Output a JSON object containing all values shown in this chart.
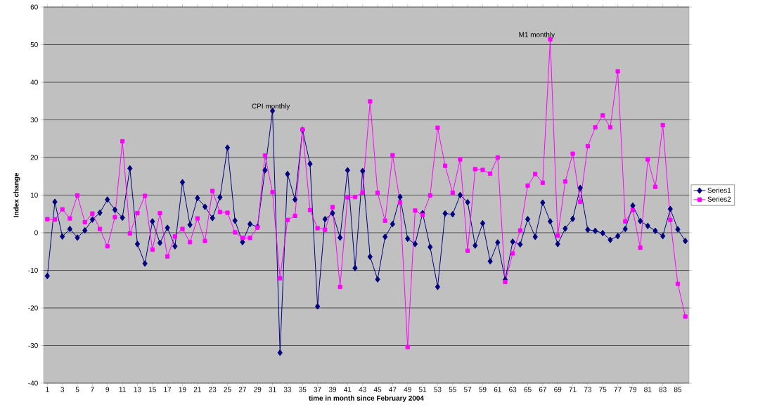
{
  "chart_data": {
    "type": "line",
    "xlabel": "time in month since February 2004",
    "ylabel": "Index change",
    "categories": [
      "1",
      null,
      "3",
      null,
      "5",
      null,
      "7",
      null,
      "9",
      null,
      "11",
      null,
      "13",
      null,
      "15",
      null,
      "17",
      null,
      "19",
      null,
      "21",
      null,
      "23",
      null,
      "25",
      null,
      "27",
      null,
      "29",
      null,
      "31",
      null,
      "33",
      null,
      "35",
      null,
      "37",
      null,
      "39",
      null,
      "41",
      null,
      "43",
      null,
      "45",
      null,
      "47",
      null,
      "49",
      null,
      "51",
      null,
      "53",
      null,
      "55",
      null,
      "57",
      null,
      "59",
      null,
      "61",
      null,
      "63",
      null,
      "65",
      null,
      "67",
      null,
      "69",
      null,
      "71",
      null,
      "73",
      null,
      "75",
      null,
      "77",
      null,
      "79",
      null,
      "81",
      null,
      "83",
      null,
      "85",
      null
    ],
    "series": [
      {
        "name": "Series1",
        "color": "#000080",
        "marker": "diamond",
        "values": [
          -11.5,
          8.2,
          -1,
          1,
          -1.3,
          0.6,
          3.5,
          5.3,
          8.8,
          6.1,
          4,
          17.1,
          -3,
          -8.2,
          3,
          -2.7,
          1.3,
          -3.6,
          13.4,
          2.1,
          9.2,
          6.9,
          3.9,
          9.4,
          22.6,
          3.2,
          -2.5,
          2.3,
          1.6,
          16.6,
          32.4,
          -31.9,
          15.6,
          8.8,
          27.3,
          18.3,
          -19.6,
          3.6,
          5.2,
          -1.3,
          16.6,
          -9.4,
          16.4,
          -6.4,
          -12.4,
          -1.1,
          2.3,
          9.5,
          -1.6,
          -3,
          5.2,
          -3.8,
          -14.4,
          5.1,
          4.9,
          10,
          8.1,
          -3.4,
          2.5,
          -7.6,
          -2.6,
          -12.5,
          -2.4,
          -3.1,
          3.6,
          -1.1,
          8,
          3,
          -3,
          1.1,
          3.7,
          11.9,
          0.8,
          0.5,
          -0.1,
          -1.9,
          -0.9,
          1,
          7.2,
          3.1,
          1.8,
          0.5,
          -0.9,
          6.3,
          0.9,
          -2.2
        ]
      },
      {
        "name": "Series2",
        "color": "#ff00ff",
        "marker": "square",
        "values": [
          3.6,
          3.5,
          6.2,
          3.8,
          9.9,
          2.8,
          5.1,
          1,
          -3.6,
          4.1,
          24.3,
          -0.2,
          5.2,
          9.8,
          -4.5,
          5.2,
          -6.3,
          -1,
          1,
          -2.5,
          3.8,
          -2.2,
          11.1,
          5.5,
          5.3,
          0.1,
          -1.4,
          -1.4,
          1.4,
          20.5,
          10.8,
          -12.1,
          3.4,
          4.5,
          27.4,
          6,
          1.2,
          0.8,
          6.8,
          -14.4,
          9.4,
          9.5,
          10.7,
          34.9,
          10.6,
          3.2,
          20.6,
          8,
          -30.4,
          5.9,
          4.7,
          9.9,
          27.9,
          17.8,
          10.6,
          19.5,
          -4.8,
          16.9,
          16.7,
          15.7,
          20,
          -13.1,
          -5.5,
          0.6,
          12.5,
          15.6,
          13.3,
          51.4,
          -0.8,
          13.6,
          21,
          8.2,
          23,
          28,
          31.2,
          28,
          42.9,
          3,
          6,
          -4,
          19.5,
          12.2,
          28.6,
          3.4,
          -13.6,
          -22.3
        ]
      }
    ],
    "annotations": [
      "CPI monthly",
      "M1 monthly"
    ],
    "ylim": [
      -40,
      60
    ],
    "yticks": [
      -40,
      -30,
      -20,
      -10,
      0,
      10,
      20,
      30,
      40,
      50,
      60
    ],
    "grid": "y",
    "legend": "right",
    "line_style": "solid"
  }
}
